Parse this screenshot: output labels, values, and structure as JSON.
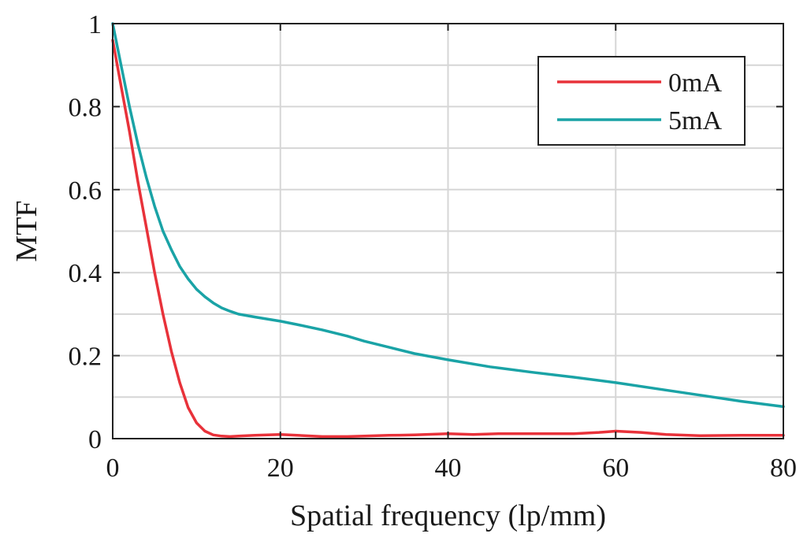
{
  "chart_data": {
    "type": "line",
    "title": "",
    "xlabel": "Spatial frequency (lp/mm)",
    "ylabel": "MTF",
    "xlim": [
      0,
      80
    ],
    "ylim": [
      0,
      1
    ],
    "xticks": [
      0,
      20,
      40,
      60,
      80
    ],
    "xtick_labels": [
      "0",
      "20",
      "40",
      "60",
      "80"
    ],
    "yticks": [
      0,
      0.2,
      0.4,
      0.6,
      0.8,
      1
    ],
    "ytick_labels": [
      "0",
      "0.2",
      "0.4",
      "0.6",
      "0.8",
      "1"
    ],
    "grid": true,
    "legend_position": "top-right",
    "series": [
      {
        "name": "0mA",
        "color": "#e8323a",
        "x": [
          0,
          1,
          2,
          3,
          4,
          5,
          6,
          7,
          8,
          9,
          10,
          11,
          12,
          13,
          14,
          15,
          17,
          20,
          22,
          25,
          28,
          30,
          33,
          36,
          40,
          43,
          46,
          50,
          55,
          58,
          60,
          63,
          66,
          70,
          75,
          80
        ],
        "y": [
          0.96,
          0.85,
          0.74,
          0.62,
          0.51,
          0.4,
          0.3,
          0.21,
          0.135,
          0.075,
          0.038,
          0.018,
          0.009,
          0.006,
          0.005,
          0.006,
          0.008,
          0.01,
          0.008,
          0.005,
          0.005,
          0.006,
          0.008,
          0.009,
          0.012,
          0.01,
          0.012,
          0.012,
          0.012,
          0.015,
          0.018,
          0.015,
          0.01,
          0.007,
          0.008,
          0.008
        ]
      },
      {
        "name": "5mA",
        "color": "#1aa3a6",
        "x": [
          0,
          1,
          2,
          3,
          4,
          5,
          6,
          7,
          8,
          9,
          10,
          11,
          12,
          13,
          14,
          15,
          17,
          20,
          22,
          25,
          28,
          30,
          33,
          36,
          40,
          45,
          50,
          55,
          60,
          65,
          70,
          75,
          80
        ],
        "y": [
          1.0,
          0.9,
          0.8,
          0.71,
          0.63,
          0.56,
          0.5,
          0.455,
          0.415,
          0.385,
          0.36,
          0.342,
          0.327,
          0.315,
          0.307,
          0.3,
          0.293,
          0.283,
          0.275,
          0.262,
          0.247,
          0.235,
          0.22,
          0.205,
          0.19,
          0.173,
          0.16,
          0.148,
          0.135,
          0.12,
          0.105,
          0.09,
          0.077
        ]
      }
    ]
  }
}
